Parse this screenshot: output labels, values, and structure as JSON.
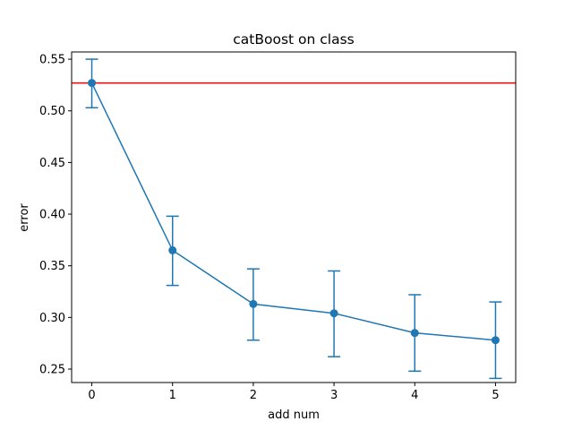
{
  "chart_data": {
    "type": "line",
    "title": "catBoost on class",
    "xlabel": "add num",
    "ylabel": "error",
    "xlim": [
      -0.25,
      5.25
    ],
    "ylim": [
      0.237,
      0.557
    ],
    "xticks": [
      "0",
      "1",
      "2",
      "3",
      "4",
      "5"
    ],
    "yticks": [
      "0.25",
      "0.30",
      "0.35",
      "0.40",
      "0.45",
      "0.50",
      "0.55"
    ],
    "grid": false,
    "series": [
      {
        "x": [
          0,
          1,
          2,
          3,
          4,
          5
        ],
        "y": [
          0.527,
          0.365,
          0.313,
          0.304,
          0.285,
          0.278
        ],
        "yerr_low": [
          0.503,
          0.331,
          0.278,
          0.262,
          0.248,
          0.241
        ],
        "yerr_high": [
          0.55,
          0.398,
          0.347,
          0.345,
          0.322,
          0.315
        ],
        "color": "#1f77b4",
        "marker": "circle"
      }
    ],
    "hlines": [
      {
        "y": 0.527,
        "color": "#ff0000"
      }
    ]
  }
}
